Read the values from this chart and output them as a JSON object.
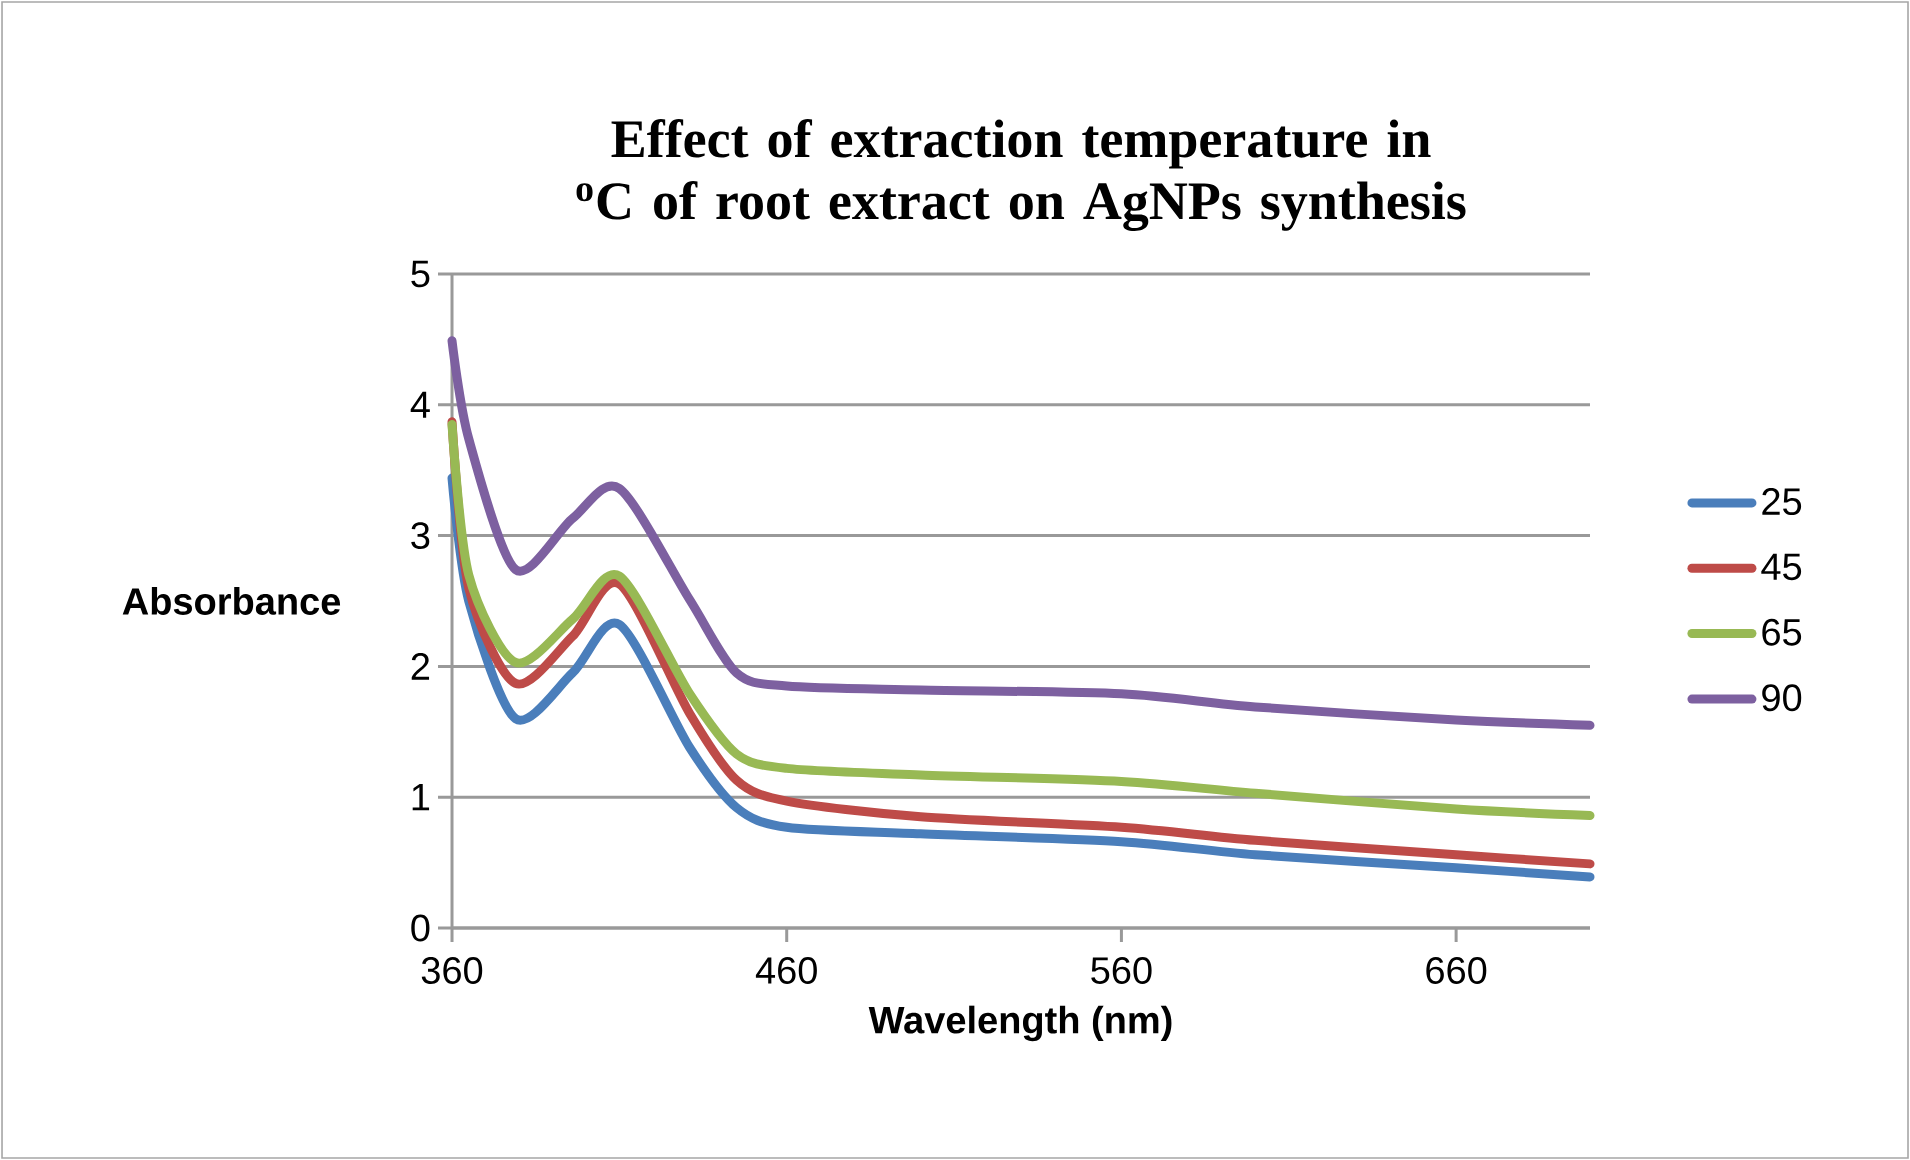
{
  "chart_data": {
    "type": "line",
    "title": "Effect of extraction temperature in $^{o}$C of root extract on AgNPs synthesis",
    "xlabel": "Wavelength (nm)",
    "ylabel": "Absorbance",
    "x": [
      360,
      365,
      379,
      396,
      410,
      431,
      445,
      460,
      500,
      560,
      600,
      660,
      700
    ],
    "series": [
      {
        "name": "25",
        "color": "#4a7ebb",
        "values": [
          3.44,
          2.5,
          1.6,
          1.95,
          2.32,
          1.38,
          0.92,
          0.77,
          0.72,
          0.66,
          0.56,
          0.46,
          0.39
        ]
      },
      {
        "name": "45",
        "color": "#be4b48",
        "values": [
          3.87,
          2.6,
          1.87,
          2.23,
          2.63,
          1.64,
          1.13,
          0.97,
          0.85,
          0.77,
          0.67,
          0.56,
          0.49
        ]
      },
      {
        "name": "65",
        "color": "#98b954",
        "values": [
          3.85,
          2.7,
          2.03,
          2.36,
          2.69,
          1.79,
          1.33,
          1.22,
          1.17,
          1.12,
          1.03,
          0.91,
          0.86
        ]
      },
      {
        "name": "90",
        "color": "#7d60a0",
        "values": [
          4.49,
          3.74,
          2.74,
          3.13,
          3.36,
          2.51,
          1.95,
          1.85,
          1.82,
          1.79,
          1.69,
          1.59,
          1.55
        ]
      }
    ],
    "xlim": [
      360,
      700
    ],
    "ylim": [
      0,
      5
    ],
    "xticks": [
      360,
      460,
      560,
      660
    ],
    "yticks": [
      0,
      1,
      2,
      3,
      4,
      5
    ],
    "grid": "y",
    "legend": "right",
    "marker": "none",
    "line_style": "solid"
  }
}
